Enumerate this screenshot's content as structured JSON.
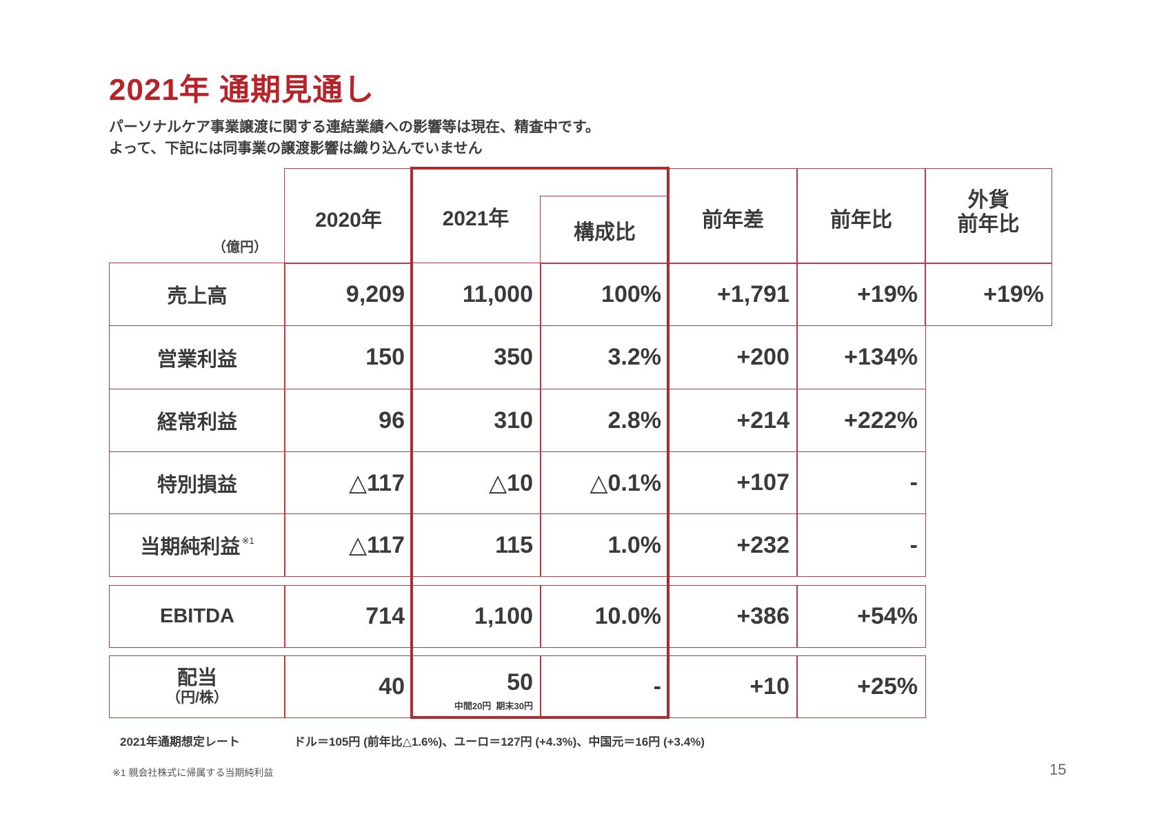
{
  "title": "2021年 通期見通し",
  "subtitle_lines": [
    "パーソナルケア事業譲渡に関する連結業績への影響等は現在、精査中です。",
    "よって、下記には同事業の譲渡影響は織り込んでいません"
  ],
  "table": {
    "unit": "（億円）",
    "headers": {
      "y2020": "2020年",
      "y2021": "2021年",
      "composition": "構成比",
      "yoy_diff": "前年差",
      "yoy_ratio": "前年比",
      "fx_yoy_line1": "外貨",
      "fx_yoy_line2": "前年比"
    },
    "rows": [
      {
        "label": "売上高",
        "y2020": "9,209",
        "y2021": "11,000",
        "composition": "100%",
        "yoy_diff": "+1,791",
        "yoy_ratio": "+19%",
        "fx_yoy": "+19%"
      },
      {
        "label": "営業利益",
        "y2020": "150",
        "y2021": "350",
        "composition": "3.2%",
        "yoy_diff": "+200",
        "yoy_ratio": "+134%"
      },
      {
        "label": "経常利益",
        "y2020": "96",
        "y2021": "310",
        "composition": "2.8%",
        "yoy_diff": "+214",
        "yoy_ratio": "+222%"
      },
      {
        "label": "特別損益",
        "y2020": "△117",
        "y2021": "△10",
        "composition": "△0.1%",
        "yoy_diff": "+107",
        "yoy_ratio": "-"
      },
      {
        "label": "当期純利益",
        "label_note": "※1",
        "y2020": "△117",
        "y2021": "115",
        "composition": "1.0%",
        "yoy_diff": "+232",
        "yoy_ratio": "-"
      },
      {
        "label": "EBITDA",
        "y2020": "714",
        "y2021": "1,100",
        "composition": "10.0%",
        "yoy_diff": "+386",
        "yoy_ratio": "+54%"
      },
      {
        "label": "配当",
        "sublabel": "（円/株）",
        "y2020": "40",
        "y2021": "50",
        "y2021_note": "中間20円  期末30円",
        "composition": "-",
        "yoy_diff": "+10",
        "yoy_ratio": "+25%"
      }
    ]
  },
  "footer": {
    "rate_label": "2021年通期想定レート",
    "rate_text": "ドル＝105円 (前年比△1.6%)、ユーロ＝127円 (+4.3%)、中国元＝16円 (+3.4%)",
    "footnote": "※1 親会社株式に帰属する当期純利益",
    "page_number": "15"
  },
  "colors": {
    "accent_red": "#b8232a",
    "table_border": "#c8373f",
    "text": "#3a3a3a"
  }
}
